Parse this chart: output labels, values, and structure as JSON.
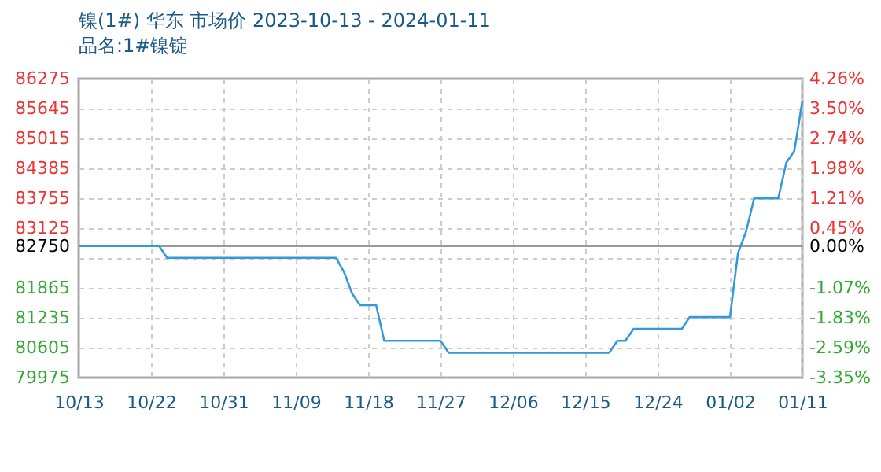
{
  "chart_data": {
    "type": "line",
    "title": "镍(1#) 华东 市场价 2023-10-13 - 2024-01-11",
    "subtitle": "品名:1#镍锭",
    "x": [
      "2023-10-13",
      "2023-10-23",
      "2023-10-24",
      "2023-11-14",
      "2023-11-15",
      "2023-11-16",
      "2023-11-17",
      "2023-11-19",
      "2023-11-20",
      "2023-11-27",
      "2023-11-28",
      "2023-12-18",
      "2023-12-19",
      "2023-12-20",
      "2023-12-21",
      "2023-12-27",
      "2023-12-28",
      "2024-01-02",
      "2024-01-03",
      "2024-01-04",
      "2024-01-05",
      "2024-01-08",
      "2024-01-09",
      "2024-01-10",
      "2024-01-11"
    ],
    "series": [
      {
        "color": "#3399dd",
        "values": [
          82750,
          82750,
          82500,
          82500,
          82200,
          81750,
          81500,
          81500,
          80750,
          80750,
          80500,
          80500,
          80750,
          80750,
          81000,
          81000,
          81250,
          81250,
          82600,
          83050,
          83750,
          83750,
          84500,
          84750,
          85800
        ]
      }
    ],
    "xlim": [
      "2023-10-13",
      "2024-01-11"
    ],
    "xticks": [
      {
        "value": "2023-10-13",
        "label": "10/13"
      },
      {
        "value": "2023-10-22",
        "label": "10/22"
      },
      {
        "value": "2023-10-31",
        "label": "10/31"
      },
      {
        "value": "2023-11-09",
        "label": "11/09"
      },
      {
        "value": "2023-11-18",
        "label": "11/18"
      },
      {
        "value": "2023-11-27",
        "label": "11/27"
      },
      {
        "value": "2023-12-06",
        "label": "12/06"
      },
      {
        "value": "2023-12-15",
        "label": "12/15"
      },
      {
        "value": "2023-12-24",
        "label": "12/24"
      },
      {
        "value": "2024-01-02",
        "label": "01/02"
      },
      {
        "value": "2024-01-11",
        "label": "01/11"
      }
    ],
    "ylim": [
      79975,
      86275
    ],
    "yticks": [
      79975,
      80605,
      81235,
      81865,
      {
        "value": 82495,
        "label": null
      },
      82750,
      83125,
      83755,
      84385,
      85015,
      85645,
      86275
    ],
    "y2lim": [
      -3.35,
      4.26
    ],
    "y2ticks": [
      {
        "value": -3.35,
        "label": "-3.35%"
      },
      {
        "value": -2.59,
        "label": "-2.59%"
      },
      {
        "value": -1.83,
        "label": "-1.83%"
      },
      {
        "value": -1.07,
        "label": "-1.07%"
      },
      {
        "value": -0.31,
        "label": null
      },
      {
        "value": 0,
        "label": "0.00%"
      },
      {
        "value": 0.45,
        "label": "0.45%"
      },
      {
        "value": 1.21,
        "label": "1.21%"
      },
      {
        "value": 1.98,
        "label": "1.98%"
      },
      {
        "value": 2.74,
        "label": "2.74%"
      },
      {
        "value": 3.5,
        "label": "3.50%"
      },
      {
        "value": 4.26,
        "label": "4.26%"
      }
    ],
    "ref_lines": [
      {
        "axis": "y",
        "value": 82750,
        "color": "#999999"
      }
    ],
    "grid": true,
    "marker": "none",
    "line_style": "solid",
    "legend": false
  }
}
